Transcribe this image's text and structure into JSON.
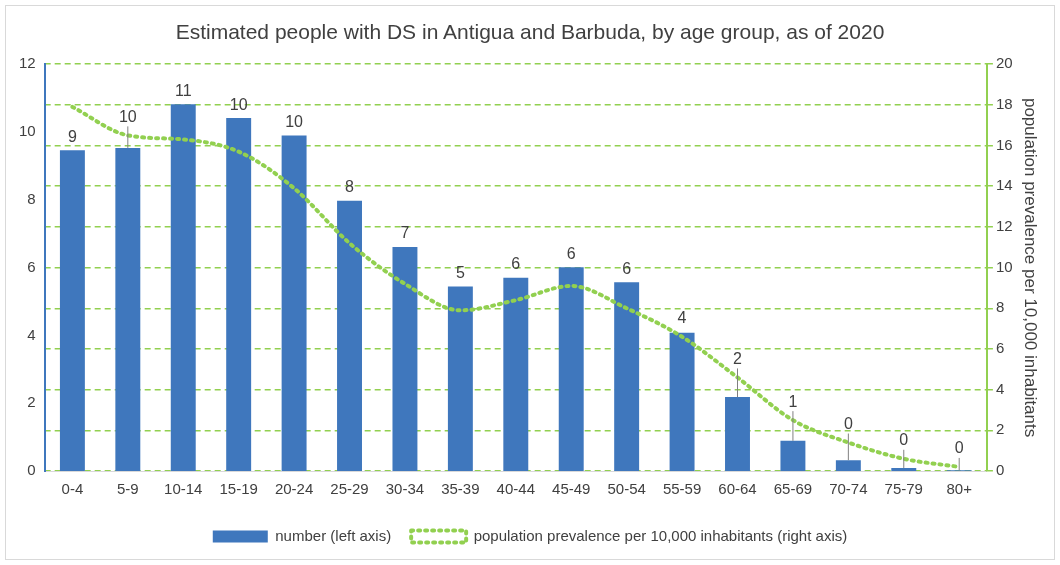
{
  "chart_data": {
    "type": "bar",
    "title": "Estimated people with DS in Antigua and Barbuda, by age group, as of 2020",
    "y2label": "population prevalence per 10,000 inhabitants",
    "categories": [
      "0-4",
      "5-9",
      "10-14",
      "15-19",
      "20-24",
      "25-29",
      "30-34",
      "35-39",
      "40-44",
      "45-49",
      "50-54",
      "55-59",
      "60-64",
      "65-69",
      "70-74",
      "75-79",
      "80+"
    ],
    "series": [
      {
        "name": "number (left axis)",
        "color": "#3f77bd",
        "values": [
          9.46,
          9.53,
          10.82,
          10.41,
          9.9,
          7.97,
          6.61,
          5.44,
          5.7,
          6.01,
          5.57,
          4.08,
          2.18,
          0.89,
          0.32,
          0.09,
          0.02
        ],
        "value_labels": [
          "9",
          "10",
          "11",
          "10",
          "10",
          "8",
          "7",
          "5",
          "6",
          "6",
          "6",
          "4",
          "2",
          "1",
          "0",
          "0",
          "0"
        ]
      },
      {
        "name": "population prevalence per 10,000 inhabitants (right axis)",
        "type": "line",
        "axis": "y2",
        "color": "#92d050",
        "line_style": "dotted",
        "marker": "none",
        "values": [
          17.9,
          16.5,
          16.3,
          15.7,
          13.9,
          11.2,
          9.2,
          7.9,
          8.4,
          9.1,
          8.0,
          6.6,
          4.6,
          2.5,
          1.4,
          0.6,
          0.2
        ]
      }
    ],
    "ylim": [
      0,
      12
    ],
    "yticks": [
      0,
      2,
      4,
      6,
      8,
      10,
      12
    ],
    "y2lim": [
      0,
      20
    ],
    "y2ticks": [
      0,
      2,
      4,
      6,
      8,
      10,
      12,
      14,
      16,
      18,
      20
    ],
    "grid": "y",
    "legend": "bottom"
  }
}
